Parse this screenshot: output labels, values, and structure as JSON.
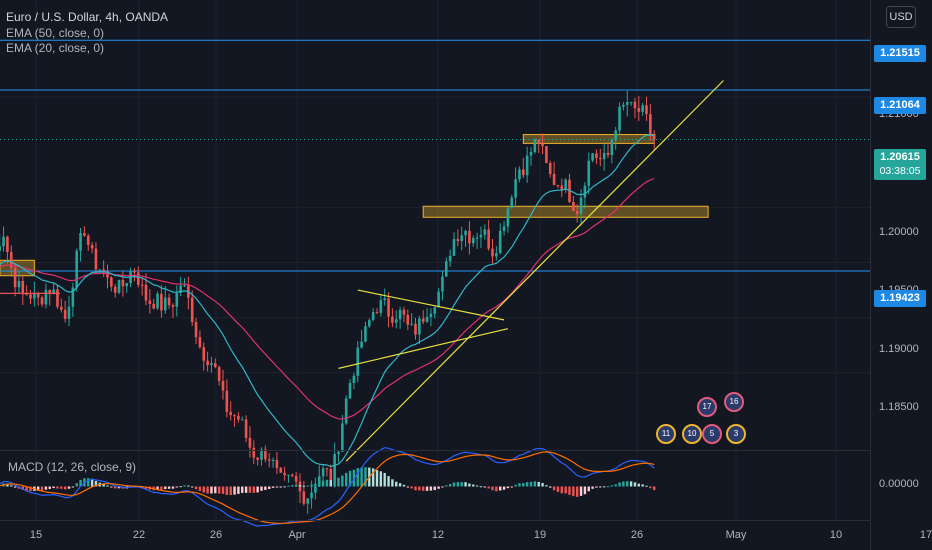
{
  "legend": {
    "symbol": "Euro / U.S. Dollar, 4h, OANDA",
    "ema50": "EMA (50, close, 0)",
    "ema20": "EMA (20, close, 0)"
  },
  "macd_label": "MACD (12, 26, close, 9)",
  "currency_button": "USD",
  "price_labels": {
    "level_1": "1.21515",
    "level_2": "1.21064",
    "current_price": "1.20615",
    "countdown": "03:38:05",
    "level_3": "1.19423"
  },
  "y_ticks": [
    "1.21000",
    "1.20000",
    "1.19500",
    "1.19000",
    "1.18500"
  ],
  "macd_tick": "0.00000",
  "x_ticks": [
    "15",
    "22",
    "26",
    "Apr",
    "12",
    "19",
    "26",
    "May",
    "10",
    "17"
  ],
  "event_badges": [
    {
      "label": "17"
    },
    {
      "label": "16"
    },
    {
      "label": "11"
    },
    {
      "label": "10"
    },
    {
      "label": "5"
    },
    {
      "label": "3"
    }
  ],
  "colors": {
    "background": "#131722",
    "up": "#26a69a",
    "down": "#ef5350",
    "ema20": "#2fb7c7",
    "ema50": "#e0316f",
    "hline": "#2196f3",
    "trendline": "#e6e040",
    "zone": "#f0b429"
  },
  "chart_data": {
    "type": "candlestick",
    "symbol": "Euro / U.S. Dollar",
    "timeframe": "4h",
    "ylim": [
      1.178,
      1.2188
    ],
    "horizontal_levels": [
      1.21515,
      1.21064,
      1.19423
    ],
    "current_price": 1.20615,
    "resistance_zones": [
      {
        "from": 1.2058,
        "to": 1.2066,
        "x_start_bar": 138,
        "x_end_bar": 172
      },
      {
        "from": 1.1991,
        "to": 1.2001,
        "x_start_bar": 112,
        "x_end_bar": 186
      },
      {
        "from": 1.1938,
        "to": 1.1952,
        "x_start_bar": 0,
        "x_end_bar": 11
      }
    ],
    "anchors": [
      {
        "bar": 0,
        "price": 1.1945
      },
      {
        "bar": 3,
        "price": 1.1975
      },
      {
        "bar": 8,
        "price": 1.1915
      },
      {
        "bar": 14,
        "price": 1.1925
      },
      {
        "bar": 19,
        "price": 1.1905
      },
      {
        "bar": 24,
        "price": 1.1978
      },
      {
        "bar": 30,
        "price": 1.1928
      },
      {
        "bar": 37,
        "price": 1.1938
      },
      {
        "bar": 44,
        "price": 1.1905
      },
      {
        "bar": 49,
        "price": 1.193
      },
      {
        "bar": 54,
        "price": 1.188
      },
      {
        "bar": 60,
        "price": 1.183
      },
      {
        "bar": 66,
        "price": 1.179
      },
      {
        "bar": 80,
        "price": 1.174
      },
      {
        "bar": 88,
        "price": 1.176
      },
      {
        "bar": 92,
        "price": 1.182
      },
      {
        "bar": 96,
        "price": 1.1885
      },
      {
        "bar": 102,
        "price": 1.1915
      },
      {
        "bar": 108,
        "price": 1.189
      },
      {
        "bar": 114,
        "price": 1.1905
      },
      {
        "bar": 119,
        "price": 1.196
      },
      {
        "bar": 123,
        "price": 1.1983
      },
      {
        "bar": 130,
        "price": 1.1965
      },
      {
        "bar": 134,
        "price": 1.1995
      },
      {
        "bar": 137,
        "price": 1.204
      },
      {
        "bar": 142,
        "price": 1.2055
      },
      {
        "bar": 147,
        "price": 1.202
      },
      {
        "bar": 152,
        "price": 1.2005
      },
      {
        "bar": 156,
        "price": 1.2045
      },
      {
        "bar": 160,
        "price": 1.205
      },
      {
        "bar": 165,
        "price": 1.21
      },
      {
        "bar": 168,
        "price": 1.2085
      },
      {
        "bar": 172,
        "price": 1.2062
      }
    ],
    "bar_count": 173,
    "trendlines": [
      {
        "from": {
          "bar": 92,
          "price": 1.177
        },
        "to": {
          "bar": 190,
          "price": 1.2115
        }
      },
      {
        "from": {
          "bar": 95,
          "price": 1.1925
        },
        "to": {
          "bar": 133,
          "price": 1.1898
        }
      },
      {
        "from": {
          "bar": 90,
          "price": 1.1854
        },
        "to": {
          "bar": 134,
          "price": 1.189
        }
      }
    ],
    "macd": {
      "fast": 12,
      "slow": 26,
      "signal": 9,
      "ylim": [
        -0.0028,
        0.0028
      ]
    }
  }
}
